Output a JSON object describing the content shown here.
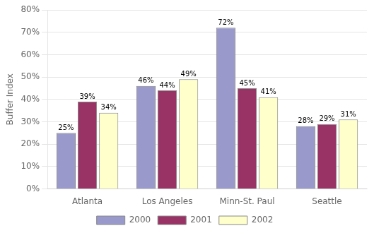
{
  "chart_data": {
    "type": "bar",
    "ylabel": "Buffer Index",
    "categories": [
      "Atlanta",
      "Los Angeles",
      "Minn-St. Paul",
      "Seattle"
    ],
    "series": [
      {
        "name": "2000",
        "color": "#9999cc",
        "values": [
          0.25,
          0.46,
          0.72,
          0.28
        ],
        "value_labels": [
          "25%",
          "46%",
          "72%",
          "28%"
        ]
      },
      {
        "name": "2001",
        "color": "#993366",
        "values": [
          0.39,
          0.44,
          0.45,
          0.29
        ],
        "value_labels": [
          "39%",
          "44%",
          "45%",
          "29%"
        ]
      },
      {
        "name": "2002",
        "color": "#ffffcc",
        "values": [
          0.34,
          0.49,
          0.41,
          0.31
        ],
        "value_labels": [
          "34%",
          "49%",
          "41%",
          "31%"
        ]
      }
    ],
    "ylim": [
      0,
      0.8
    ],
    "yticks": [
      {
        "value": 0.0,
        "label": "0%"
      },
      {
        "value": 0.1,
        "label": "10%"
      },
      {
        "value": 0.2,
        "label": "20%"
      },
      {
        "value": 0.3,
        "label": "30%"
      },
      {
        "value": 0.4,
        "label": "40%"
      },
      {
        "value": 0.5,
        "label": "50%"
      },
      {
        "value": 0.6,
        "label": "60%"
      },
      {
        "value": 0.7,
        "label": "70%"
      },
      {
        "value": 0.8,
        "label": "80%"
      }
    ],
    "grid": true,
    "legend": "bottom",
    "data_labels": true
  }
}
